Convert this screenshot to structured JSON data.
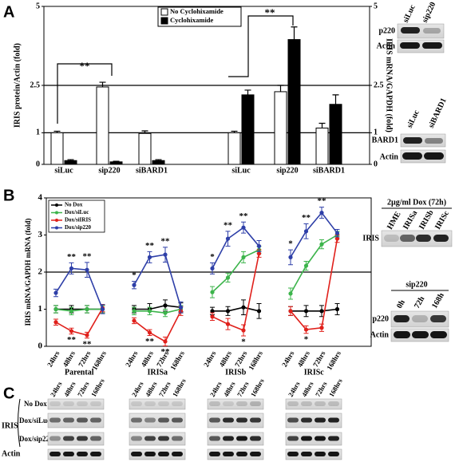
{
  "panels": [
    "A",
    "B",
    "C"
  ],
  "chart_data": [
    {
      "type": "bar",
      "y_label": "IRIS protein/Actin (fold)",
      "y2_label": "IRIS mRNA/GAPDH (fold)",
      "categories": [
        "siLuc",
        "sip220",
        "siBARD1",
        "siLuc",
        "sip220",
        "siBARD1"
      ],
      "series": [
        {
          "name": "No Cyclohixamide",
          "color": "#ffffff",
          "values": [
            1.0,
            2.45,
            0.98,
            1.0,
            2.3,
            1.15
          ],
          "errors": [
            0.05,
            0.15,
            0.08,
            0.05,
            0.2,
            0.15
          ]
        },
        {
          "name": "Cyclohixamide",
          "color": "#000000",
          "values": [
            0.12,
            0.08,
            0.12,
            2.2,
            3.95,
            1.9
          ],
          "errors": [
            0.03,
            0.02,
            0.03,
            0.15,
            0.4,
            0.3
          ]
        }
      ],
      "ylim": [
        0,
        5
      ],
      "yticks": [
        0,
        1,
        2.5,
        5
      ],
      "y2lim": [
        0,
        5
      ],
      "y2ticks": [
        0,
        1,
        2.5,
        5
      ],
      "grid": true,
      "annotations": [
        "**",
        "**"
      ]
    },
    {
      "type": "line",
      "y_label": "IRIS mRNA/GAPDH mRNA (fold)",
      "groups": [
        "Parental",
        "IRISa",
        "IRISb",
        "IRISc"
      ],
      "categories": [
        "24hrs",
        "48hrs",
        "72hrs",
        "168hrs"
      ],
      "series": [
        {
          "name": "No Dox",
          "color": "#000000",
          "values": [
            [
              1.0,
              1.0,
              1.0,
              1.0
            ],
            [
              1.0,
              1.0,
              1.1,
              1.05
            ],
            [
              0.95,
              0.95,
              1.05,
              0.95
            ],
            [
              0.95,
              0.95,
              0.95,
              1.0
            ]
          ],
          "errors": [
            [
              0.1,
              0.1,
              0.1,
              0.1
            ],
            [
              0.1,
              0.15,
              0.15,
              0.12
            ],
            [
              0.1,
              0.12,
              0.2,
              0.2
            ],
            [
              0.12,
              0.15,
              0.15,
              0.15
            ]
          ]
        },
        {
          "name": "Dox/siLuc",
          "color": "#3cb44b",
          "values": [
            [
              1.0,
              0.95,
              1.0,
              1.0
            ],
            [
              0.95,
              0.95,
              0.9,
              1.0
            ],
            [
              1.46,
              1.85,
              2.4,
              2.6
            ],
            [
              1.42,
              2.17,
              2.75,
              3.0
            ]
          ],
          "errors": [
            [
              0.1,
              0.1,
              0.1,
              0.1
            ],
            [
              0.1,
              0.1,
              0.1,
              0.1
            ],
            [
              0.15,
              0.12,
              0.15,
              0.1
            ],
            [
              0.15,
              0.12,
              0.12,
              0.1
            ]
          ]
        },
        {
          "name": "Dox/siIRIS",
          "color": "#e0201b",
          "values": [
            [
              0.65,
              0.41,
              0.3,
              1.03
            ],
            [
              0.69,
              0.37,
              0.13,
              0.95
            ],
            [
              0.8,
              0.6,
              0.43,
              2.5
            ],
            [
              0.95,
              0.45,
              0.5,
              2.9
            ]
          ],
          "errors": [
            [
              0.08,
              0.08,
              0.08,
              0.1
            ],
            [
              0.08,
              0.08,
              0.12,
              0.12
            ],
            [
              0.1,
              0.15,
              0.15,
              0.1
            ],
            [
              0.12,
              0.1,
              0.1,
              0.1
            ]
          ]
        },
        {
          "name": "Dox/sip220",
          "color": "#2e3fa8",
          "values": [
            [
              1.44,
              2.1,
              2.06,
              1.0
            ],
            [
              1.65,
              2.4,
              2.47,
              1.05
            ],
            [
              2.1,
              2.9,
              3.2,
              2.7
            ],
            [
              2.4,
              3.1,
              3.6,
              3.05
            ]
          ],
          "errors": [
            [
              0.1,
              0.15,
              0.2,
              0.12
            ],
            [
              0.1,
              0.15,
              0.2,
              0.15
            ],
            [
              0.15,
              0.2,
              0.15,
              0.15
            ],
            [
              0.2,
              0.2,
              0.15,
              0.1
            ]
          ]
        }
      ],
      "ylim": [
        0,
        4
      ],
      "yticks": [
        0,
        1,
        2,
        3,
        4
      ],
      "reference_line": 2,
      "legend": "top-left",
      "annotations": [
        "**",
        "**",
        "**",
        "**",
        "*",
        "**",
        "**",
        "**",
        "**",
        "*",
        "**",
        "**",
        "*",
        "*",
        "**",
        "**",
        "*"
      ]
    }
  ],
  "gels": {
    "a_p220": {
      "columns": [
        "siLuc",
        "sip220"
      ],
      "rows": [
        "p220",
        "Actin"
      ]
    },
    "a_bard1": {
      "columns": [
        "siLuc",
        "siBARD1"
      ],
      "rows": [
        "BARD1",
        "Actin"
      ]
    },
    "b_iris": {
      "title": "2µg/ml Dox (72h)",
      "columns": [
        "HME",
        "IRISa",
        "IRISb",
        "IRISc"
      ],
      "rows": [
        "IRIS"
      ]
    },
    "b_p220": {
      "title": "sip220",
      "columns": [
        "0h",
        "72h",
        "168h"
      ],
      "rows": [
        "p220",
        "Actin"
      ]
    },
    "c": {
      "columns": [
        "24hrs",
        "48hrs",
        "72hrs",
        "168hrs"
      ],
      "rows": [
        "No Dox",
        "Dox/siLuc",
        "Dox/sip220"
      ],
      "group_label": "IRIS",
      "actin": "Actin"
    }
  }
}
